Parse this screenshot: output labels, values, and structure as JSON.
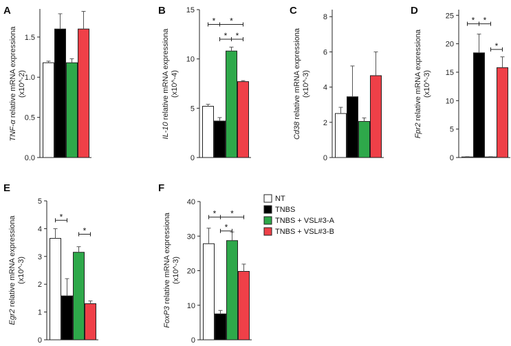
{
  "groups": [
    "NT",
    "TNBS",
    "TNBS + VSL#3-A",
    "TNBS + VSL#3-B"
  ],
  "colors": {
    "NT": "#ffffff",
    "TNBS": "#000000",
    "TNBS + VSL#3-A": "#2ea84a",
    "TNBS + VSL#3-B": "#ef4048"
  },
  "chart_data": [
    {
      "panel": "A",
      "type": "bar",
      "gene": "TNF-α",
      "ylabel_suffix": " relative mRNA expressiona",
      "ylabel_units": "(x10^-2)",
      "categories": [
        "NT",
        "TNBS",
        "TNBS + VSL#3-A",
        "TNBS + VSL#3-B"
      ],
      "values": [
        1.18,
        1.6,
        1.18,
        1.6
      ],
      "errors": [
        0.02,
        0.19,
        0.05,
        0.22
      ],
      "ylim": [
        0,
        1.85
      ],
      "ticks": [
        0.0,
        0.5,
        1.0,
        1.5
      ],
      "tick_labels": [
        "0.0",
        "0.5",
        "1.0",
        "1.5"
      ],
      "significance": []
    },
    {
      "panel": "B",
      "type": "bar",
      "gene": "IL-10",
      "ylabel_suffix": " relative mRNA expressiona",
      "ylabel_units": "(x10^-4)",
      "categories": [
        "NT",
        "TNBS",
        "TNBS + VSL#3-A",
        "TNBS + VSL#3-B"
      ],
      "values": [
        5.2,
        3.7,
        10.8,
        7.7
      ],
      "errors": [
        0.2,
        0.35,
        0.4,
        0.1
      ],
      "ylim": [
        0,
        15
      ],
      "ticks": [
        0,
        5,
        10,
        15
      ],
      "tick_labels": [
        "0",
        "5",
        "10",
        "15"
      ],
      "significance": [
        {
          "from": 0,
          "to": 1,
          "level": 13.5,
          "label": "*"
        },
        {
          "from": 1,
          "to": 3,
          "level": 13.5,
          "label": "*"
        },
        {
          "from": 1,
          "to": 2,
          "level": 12.0,
          "label": "*"
        },
        {
          "from": 2,
          "to": 3,
          "level": 12.0,
          "label": "*"
        }
      ]
    },
    {
      "panel": "C",
      "type": "bar",
      "gene": "Cd38",
      "ylabel_suffix": " relative mRNA expressiona",
      "ylabel_units": "(x10^-3)",
      "categories": [
        "NT",
        "TNBS",
        "TNBS + VSL#3-A",
        "TNBS + VSL#3-B"
      ],
      "values": [
        2.5,
        3.45,
        2.05,
        4.65
      ],
      "errors": [
        0.35,
        1.75,
        0.2,
        1.35
      ],
      "ylim": [
        0,
        8.4
      ],
      "ticks": [
        0,
        2,
        4,
        6,
        8
      ],
      "tick_labels": [
        "0",
        "2",
        "4",
        "6",
        "8"
      ],
      "significance": []
    },
    {
      "panel": "D",
      "type": "bar",
      "gene": "Fpr2",
      "ylabel_suffix": " relative mRNA expressiona",
      "ylabel_units": "(x10^-3)",
      "categories": [
        "NT",
        "TNBS",
        "TNBS + VSL#3-A",
        "TNBS + VSL#3-B"
      ],
      "values": [
        0.1,
        18.4,
        0.1,
        15.8
      ],
      "errors": [
        0.05,
        3.3,
        0.05,
        1.9
      ],
      "ylim": [
        0,
        26
      ],
      "ticks": [
        0,
        5,
        10,
        15,
        20,
        25
      ],
      "tick_labels": [
        "0",
        "5",
        "10",
        "15",
        "20",
        "25"
      ],
      "significance": [
        {
          "from": 0,
          "to": 1,
          "level": 23.5,
          "label": "*"
        },
        {
          "from": 1,
          "to": 2,
          "level": 23.5,
          "label": "*"
        },
        {
          "from": 2,
          "to": 3,
          "level": 19.0,
          "label": "*"
        }
      ]
    },
    {
      "panel": "E",
      "type": "bar",
      "gene": "Egr2",
      "ylabel_suffix": " relative mRNA expressiona",
      "ylabel_units": "(x10^-3)",
      "categories": [
        "NT",
        "TNBS",
        "TNBS + VSL#3-A",
        "TNBS + VSL#3-B"
      ],
      "values": [
        3.65,
        1.58,
        3.15,
        1.3
      ],
      "errors": [
        0.35,
        0.62,
        0.2,
        0.1
      ],
      "ylim": [
        0,
        5
      ],
      "ticks": [
        0,
        1,
        2,
        3,
        4,
        5
      ],
      "tick_labels": [
        "0",
        "1",
        "2",
        "3",
        "4",
        "5"
      ],
      "significance": [
        {
          "from": 0,
          "to": 1,
          "level": 4.3,
          "label": "*"
        },
        {
          "from": 2,
          "to": 3,
          "level": 3.8,
          "label": "*"
        }
      ]
    },
    {
      "panel": "F",
      "type": "bar",
      "gene": "FoxP3",
      "ylabel_suffix": " relative mRNA expressiona",
      "ylabel_units": "(x10^-3)",
      "categories": [
        "NT",
        "TNBS",
        "TNBS + VSL#3-A",
        "TNBS + VSL#3-B"
      ],
      "values": [
        27.8,
        7.5,
        28.7,
        19.8
      ],
      "errors": [
        4.5,
        1.0,
        2.5,
        2.1
      ],
      "ylim": [
        0,
        40
      ],
      "ticks": [
        0,
        10,
        20,
        30,
        40
      ],
      "tick_labels": [
        "0",
        "10",
        "20",
        "30",
        "40"
      ],
      "significance": [
        {
          "from": 0,
          "to": 1,
          "level": 35.5,
          "label": "*"
        },
        {
          "from": 1,
          "to": 3,
          "level": 35.5,
          "label": "*"
        },
        {
          "from": 1,
          "to": 2,
          "level": 31.5,
          "label": "*"
        }
      ]
    }
  ]
}
